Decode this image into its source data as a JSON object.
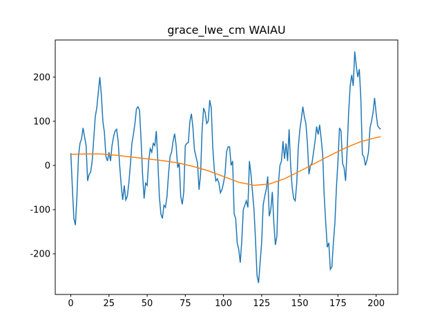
{
  "chart_data": {
    "type": "line",
    "title": "grace_lwe_cm WAIAU",
    "xlim": [
      -10.2,
      214.2
    ],
    "ylim": [
      -292,
      284
    ],
    "xticks": [
      0,
      25,
      50,
      75,
      100,
      125,
      150,
      175,
      200
    ],
    "yticks": [
      -200,
      -100,
      0,
      100,
      200
    ],
    "grid": false,
    "series": [
      {
        "color": "#1f77b4",
        "x": [
          0,
          1,
          2,
          3,
          4,
          5,
          6,
          7,
          8,
          9,
          10,
          11,
          12,
          13,
          14,
          15,
          16,
          17,
          18,
          19,
          20,
          21,
          22,
          23,
          24,
          25,
          26,
          27,
          28,
          29,
          30,
          31,
          32,
          33,
          34,
          35,
          36,
          37,
          38,
          39,
          40,
          41,
          42,
          43,
          44,
          45,
          46,
          47,
          48,
          49,
          50,
          51,
          52,
          53,
          54,
          55,
          56,
          57,
          58,
          59,
          60,
          61,
          62,
          63,
          64,
          65,
          66,
          67,
          68,
          69,
          70,
          71,
          72,
          73,
          74,
          75,
          76,
          77,
          78,
          79,
          80,
          81,
          82,
          83,
          84,
          85,
          86,
          87,
          88,
          89,
          90,
          91,
          92,
          93,
          94,
          95,
          96,
          97,
          98,
          99,
          100,
          101,
          102,
          103,
          104,
          105,
          106,
          107,
          108,
          109,
          110,
          111,
          112,
          113,
          114,
          115,
          116,
          117,
          118,
          119,
          120,
          121,
          122,
          123,
          124,
          125,
          126,
          127,
          128,
          129,
          130,
          131,
          132,
          133,
          134,
          135,
          136,
          137,
          138,
          139,
          140,
          141,
          142,
          143,
          144,
          145,
          146,
          147,
          148,
          149,
          150,
          151,
          152,
          153,
          154,
          155,
          156,
          157,
          158,
          159,
          160,
          161,
          162,
          163,
          164,
          165,
          166,
          167,
          168,
          169,
          170,
          171,
          172,
          173,
          174,
          175,
          176,
          177,
          178,
          179,
          180,
          181,
          182,
          183,
          184,
          185,
          186,
          187,
          188,
          189,
          190,
          191,
          192,
          193,
          194,
          195,
          196,
          197,
          198,
          199,
          200,
          201,
          202,
          203
        ],
        "values": [
          28,
          -50,
          -120,
          -135,
          -70,
          20,
          50,
          60,
          85,
          65,
          45,
          -35,
          -20,
          -15,
          10,
          60,
          110,
          130,
          165,
          200,
          160,
          100,
          75,
          20,
          10,
          30,
          10,
          45,
          65,
          78,
          82,
          55,
          0,
          -45,
          -78,
          -45,
          -78,
          -70,
          -40,
          0,
          50,
          70,
          95,
          128,
          133,
          125,
          60,
          -20,
          -75,
          -40,
          -45,
          10,
          38,
          30,
          50,
          45,
          78,
          10,
          -70,
          -110,
          -120,
          -90,
          -95,
          -70,
          -20,
          20,
          30,
          55,
          72,
          45,
          -5,
          5,
          -70,
          -88,
          -60,
          45,
          50,
          52,
          100,
          117,
          85,
          35,
          20,
          5,
          -55,
          -20,
          80,
          130,
          120,
          95,
          100,
          148,
          130,
          40,
          -10,
          -35,
          -30,
          -40,
          -62,
          -55,
          -40,
          -20,
          30,
          42,
          42,
          0,
          10,
          -110,
          -120,
          -175,
          -190,
          -220,
          -170,
          -100,
          -90,
          -80,
          -95,
          10,
          -20,
          -60,
          -100,
          -170,
          -250,
          -266,
          -220,
          -175,
          -90,
          -70,
          -55,
          -25,
          -115,
          -100,
          -60,
          -130,
          -180,
          -160,
          -40,
          0,
          10,
          55,
          15,
          50,
          10,
          82,
          0,
          -50,
          -75,
          -80,
          -40,
          40,
          80,
          105,
          133,
          110,
          95,
          50,
          -20,
          0,
          5,
          30,
          55,
          88,
          70,
          92,
          60,
          25,
          -70,
          -130,
          -185,
          -175,
          -235,
          -230,
          -175,
          -130,
          -50,
          10,
          85,
          78,
          5,
          -5,
          -35,
          35,
          120,
          180,
          205,
          180,
          258,
          225,
          200,
          218,
          150,
          25,
          20,
          0,
          12,
          30,
          85,
          100,
          120,
          153,
          118,
          90,
          85,
          82
        ]
      },
      {
        "color": "#ff7f0e",
        "x": [
          0,
          10,
          20,
          30,
          40,
          50,
          60,
          70,
          80,
          90,
          100,
          110,
          120,
          130,
          140,
          150,
          160,
          170,
          180,
          190,
          200,
          203
        ],
        "values": [
          25,
          26,
          26,
          23,
          19,
          15,
          11,
          6,
          -2,
          -12,
          -25,
          -38,
          -45,
          -42,
          -30,
          -13,
          5,
          23,
          40,
          54,
          63,
          65
        ]
      }
    ]
  }
}
